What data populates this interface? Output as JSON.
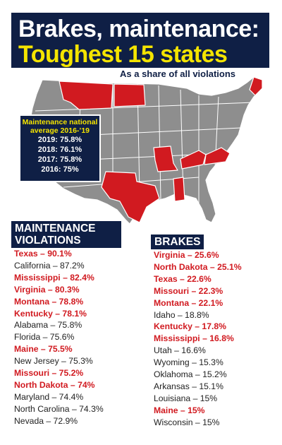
{
  "header": {
    "title_line1": "Brakes, maintenance:",
    "title_line2": "Toughest 15 states",
    "subtitle": "As a share of all violations"
  },
  "national_average": {
    "title": "Maintenance national average 2016-’19",
    "rows": [
      "2019: 75.8%",
      "2018: 76.1%",
      "2017: 75.8%",
      "2016: 75%"
    ]
  },
  "colors": {
    "navy": "#0f1f45",
    "yellow": "#f4e400",
    "red": "#d11a20",
    "map_gray": "#8e8e8e",
    "highlight_state": "#d11a20"
  },
  "chart_data": [
    {
      "type": "table",
      "title": "MAINTENANCE VIOLATIONS",
      "unit": "%",
      "highlight_color": "#d11a20",
      "rows": [
        {
          "label": "Texas – 90.1%",
          "state": "Texas",
          "value": 90.1,
          "highlight": true
        },
        {
          "label": "California – 87.2%",
          "state": "California",
          "value": 87.2,
          "highlight": false
        },
        {
          "label": "Mississippi – 82.4%",
          "state": "Mississippi",
          "value": 82.4,
          "highlight": true
        },
        {
          "label": "Virginia – 80.3%",
          "state": "Virginia",
          "value": 80.3,
          "highlight": true
        },
        {
          "label": "Montana – 78.8%",
          "state": "Montana",
          "value": 78.8,
          "highlight": true
        },
        {
          "label": "Kentucky – 78.1%",
          "state": "Kentucky",
          "value": 78.1,
          "highlight": true
        },
        {
          "label": "Alabama – 75.8%",
          "state": "Alabama",
          "value": 75.8,
          "highlight": false
        },
        {
          "label": "Florida – 75.6%",
          "state": "Florida",
          "value": 75.6,
          "highlight": false
        },
        {
          "label": "Maine – 75.5%",
          "state": "Maine",
          "value": 75.5,
          "highlight": true
        },
        {
          "label": "New Jersey – 75.3%",
          "state": "New Jersey",
          "value": 75.3,
          "highlight": false
        },
        {
          "label": "Missouri – 75.2%",
          "state": "Missouri",
          "value": 75.2,
          "highlight": true
        },
        {
          "label": "North Dakota – 74%",
          "state": "North Dakota",
          "value": 74,
          "highlight": true
        },
        {
          "label": "Maryland – 74.4%",
          "state": "Maryland",
          "value": 74.4,
          "highlight": false
        },
        {
          "label": "North Carolina – 74.3%",
          "state": "North Carolina",
          "value": 74.3,
          "highlight": false
        },
        {
          "label": "Nevada – 72.9%",
          "state": "Nevada",
          "value": 72.9,
          "highlight": false
        }
      ]
    },
    {
      "type": "table",
      "title": "BRAKES",
      "unit": "%",
      "highlight_color": "#d11a20",
      "rows": [
        {
          "label": "Virginia – 25.6%",
          "state": "Virginia",
          "value": 25.6,
          "highlight": true
        },
        {
          "label": "North Dakota – 25.1%",
          "state": "North Dakota",
          "value": 25.1,
          "highlight": true
        },
        {
          "label": "Texas – 22.6%",
          "state": "Texas",
          "value": 22.6,
          "highlight": true
        },
        {
          "label": "Missouri – 22.3%",
          "state": "Missouri",
          "value": 22.3,
          "highlight": true
        },
        {
          "label": "Montana – 22.1%",
          "state": "Montana",
          "value": 22.1,
          "highlight": true
        },
        {
          "label": "Idaho – 18.8%",
          "state": "Idaho",
          "value": 18.8,
          "highlight": false
        },
        {
          "label": "Kentucky – 17.8%",
          "state": "Kentucky",
          "value": 17.8,
          "highlight": true
        },
        {
          "label": "Mississippi – 16.8%",
          "state": "Mississippi",
          "value": 16.8,
          "highlight": true
        },
        {
          "label": "Utah – 16.6%",
          "state": "Utah",
          "value": 16.6,
          "highlight": false
        },
        {
          "label": "Wyoming – 15.3%",
          "state": "Wyoming",
          "value": 15.3,
          "highlight": false
        },
        {
          "label": "Oklahoma – 15.2%",
          "state": "Oklahoma",
          "value": 15.2,
          "highlight": false
        },
        {
          "label": "Arkansas – 15.1%",
          "state": "Arkansas",
          "value": 15.1,
          "highlight": false
        },
        {
          "label": "Louisiana – 15%",
          "state": "Louisiana",
          "value": 15,
          "highlight": false
        },
        {
          "label": "Maine – 15%",
          "state": "Maine",
          "value": 15,
          "highlight": true
        },
        {
          "label": "Wisconsin – 15%",
          "state": "Wisconsin",
          "value": 15,
          "highlight": false
        }
      ]
    }
  ]
}
